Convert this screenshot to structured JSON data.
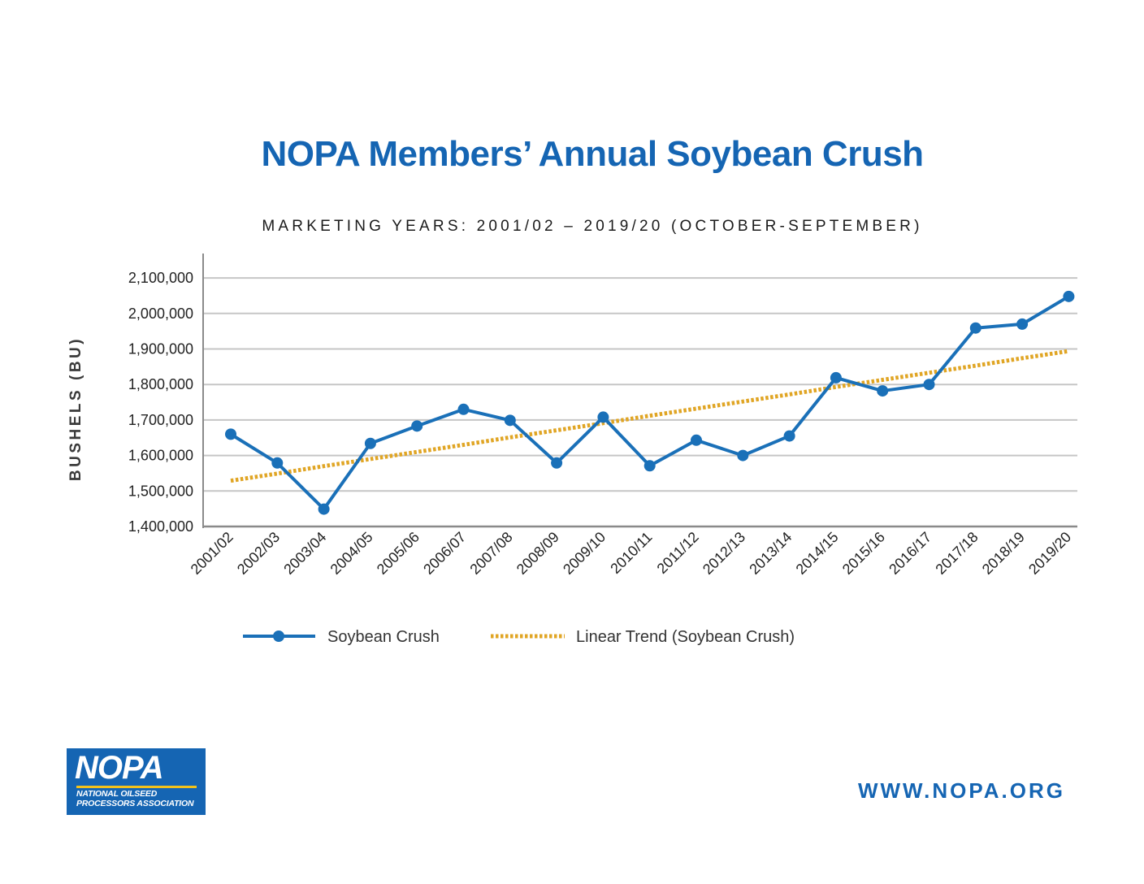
{
  "colors": {
    "title": "#1565b3",
    "crush_line": "#1a70b8",
    "trend_line": "#e0a524",
    "grid": "#c6c6c6",
    "axis": "#8a8a8a",
    "logo_bg": "#1565b3",
    "url": "#1565b3"
  },
  "chart_data": {
    "type": "line",
    "title": "NOPA Members’ Annual Soybean Crush",
    "subtitle": "MARKETING YEARS: 2001/02 – 2019/20 (OCTOBER-SEPTEMBER)",
    "xlabel": "",
    "ylabel": "BUSHELS (BU)",
    "ylim": [
      1400000,
      2100000
    ],
    "yticks": [
      1400000,
      1500000,
      1600000,
      1700000,
      1800000,
      1900000,
      2000000,
      2100000
    ],
    "ytick_labels": [
      "1,400,000",
      "1,500,000",
      "1,600,000",
      "1,700,000",
      "1,800,000",
      "1,900,000",
      "2,000,000",
      "2,100,000"
    ],
    "grid": true,
    "legend_position": "bottom",
    "categories": [
      "2001/02",
      "2002/03",
      "2003/04",
      "2004/05",
      "2005/06",
      "2006/07",
      "2007/08",
      "2008/09",
      "2009/10",
      "2010/11",
      "2011/12",
      "2012/13",
      "2013/14",
      "2014/15",
      "2015/16",
      "2016/17",
      "2017/18",
      "2018/19",
      "2019/20"
    ],
    "series": [
      {
        "name": "Soybean Crush",
        "style": "solid-markers",
        "values": [
          1660000,
          1579000,
          1449000,
          1634000,
          1683000,
          1730000,
          1699000,
          1579000,
          1708000,
          1571000,
          1643000,
          1600000,
          1655000,
          1819000,
          1782000,
          1800000,
          1959000,
          1970000,
          2048000
        ]
      },
      {
        "name": "Linear Trend (Soybean Crush)",
        "style": "dotted",
        "values": [
          1529000,
          1549000,
          1570000,
          1590000,
          1610000,
          1630000,
          1651000,
          1671000,
          1691000,
          1712000,
          1732000,
          1752000,
          1772000,
          1793000,
          1813000,
          1833000,
          1853000,
          1874000,
          1894000
        ]
      }
    ]
  },
  "logo": {
    "word": "NOPA",
    "subtitle": "NATIONAL OILSEED PROCESSORS ASSOCIATION"
  },
  "footer": {
    "url": "WWW.NOPA.ORG"
  }
}
